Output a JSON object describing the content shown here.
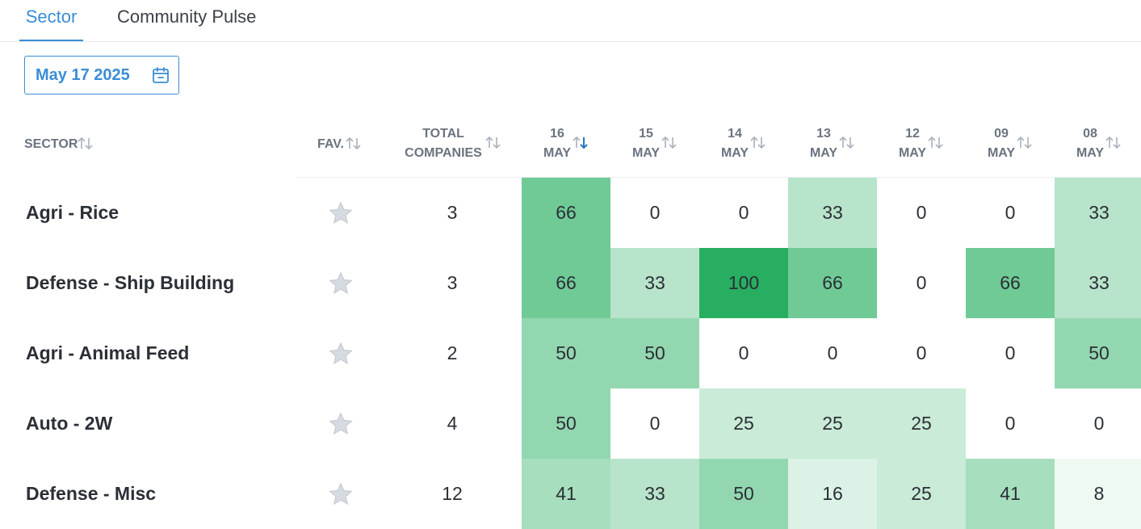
{
  "tabs": [
    {
      "label": "Sector",
      "active": true
    },
    {
      "label": "Community Pulse",
      "active": false
    }
  ],
  "date_picker": {
    "value": "May 17 2025",
    "icon": "calendar-icon"
  },
  "table": {
    "headers": {
      "sector": "SECTOR",
      "fav": "FAV.",
      "total_line1": "TOTAL",
      "total_line2": "COMPANIES",
      "dates": [
        {
          "day": "16",
          "month": "MAY",
          "sorted": "desc"
        },
        {
          "day": "15",
          "month": "MAY",
          "sorted": "none"
        },
        {
          "day": "14",
          "month": "MAY",
          "sorted": "none"
        },
        {
          "day": "13",
          "month": "MAY",
          "sorted": "none"
        },
        {
          "day": "12",
          "month": "MAY",
          "sorted": "none"
        },
        {
          "day": "09",
          "month": "MAY",
          "sorted": "none"
        },
        {
          "day": "08",
          "month": "MAY",
          "sorted": "none"
        }
      ]
    },
    "rows": [
      {
        "sector": "Agri - Rice",
        "favorite": false,
        "total": "3",
        "values": [
          "66",
          "0",
          "0",
          "33",
          "0",
          "0",
          "33"
        ]
      },
      {
        "sector": "Defense - Ship Building",
        "favorite": false,
        "total": "3",
        "values": [
          "66",
          "33",
          "100",
          "66",
          "0",
          "66",
          "33"
        ]
      },
      {
        "sector": "Agri - Animal Feed",
        "favorite": false,
        "total": "2",
        "values": [
          "50",
          "50",
          "0",
          "0",
          "0",
          "0",
          "50"
        ]
      },
      {
        "sector": "Auto - 2W",
        "favorite": false,
        "total": "4",
        "values": [
          "50",
          "0",
          "25",
          "25",
          "25",
          "0",
          "0"
        ]
      },
      {
        "sector": "Defense - Misc",
        "favorite": false,
        "total": "12",
        "values": [
          "41",
          "33",
          "50",
          "16",
          "25",
          "41",
          "8"
        ]
      }
    ]
  },
  "colors": {
    "accent": "#3a8dd6",
    "heat_max": "#27ae60",
    "heat_empty": "#ffffff",
    "sort_active": "#2a74c4",
    "sort_inactive": "#aab1bb",
    "star": "#d6dae1"
  }
}
